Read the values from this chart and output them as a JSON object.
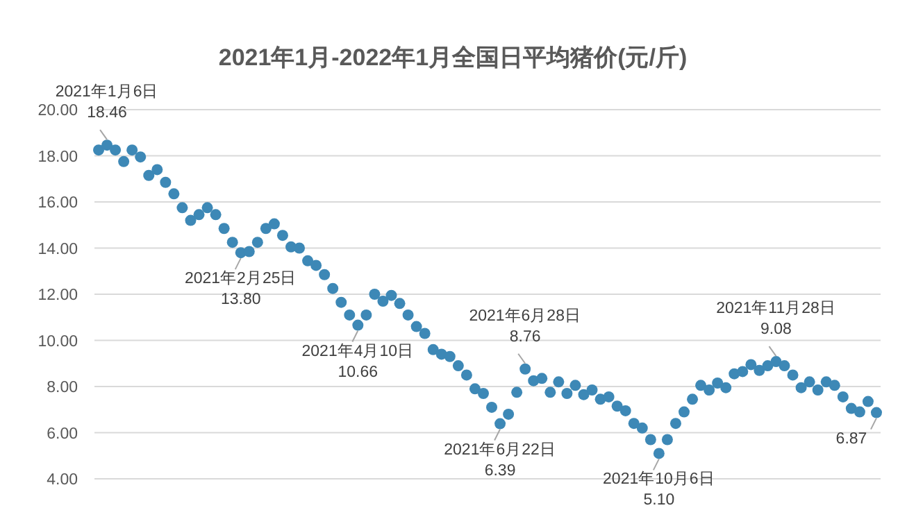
{
  "chart_data": {
    "type": "scatter",
    "title": "2021年1月-2022年1月全国日平均猪价(元/斤)",
    "categories": [
      null,
      null,
      null,
      null,
      null,
      null,
      null,
      null,
      null,
      null,
      null,
      null,
      null,
      null,
      null,
      null,
      null,
      null,
      null,
      null,
      null,
      null,
      null,
      null,
      null,
      null,
      null,
      null,
      null,
      null,
      null,
      null,
      null,
      null,
      null,
      null,
      null,
      null,
      null,
      null,
      null,
      null,
      null,
      null,
      null,
      null,
      null,
      null,
      null,
      null,
      null,
      null,
      null,
      null,
      null,
      null,
      null,
      null,
      null,
      null,
      null,
      null,
      null,
      null,
      null,
      null,
      null,
      null,
      null,
      null,
      null,
      null,
      null,
      null,
      null,
      null,
      null,
      null,
      null,
      null,
      null,
      null,
      null,
      null,
      null,
      null,
      null,
      null,
      null,
      null,
      null,
      null,
      null,
      null
    ],
    "series": [
      {
        "color": "#3d88b6",
        "values": [
          18.25,
          18.46,
          18.25,
          17.75,
          18.25,
          17.95,
          17.15,
          17.4,
          16.85,
          16.35,
          15.75,
          15.2,
          15.45,
          15.75,
          15.45,
          14.85,
          14.25,
          13.8,
          13.85,
          14.25,
          14.85,
          15.05,
          14.55,
          14.05,
          14.0,
          13.45,
          13.25,
          12.85,
          12.25,
          11.65,
          11.1,
          10.66,
          11.1,
          12.0,
          11.7,
          11.95,
          11.6,
          11.1,
          10.6,
          10.3,
          9.6,
          9.4,
          9.3,
          8.9,
          8.5,
          7.9,
          7.7,
          7.1,
          6.39,
          6.8,
          7.75,
          8.76,
          8.25,
          8.35,
          7.75,
          8.2,
          7.7,
          8.05,
          7.65,
          7.85,
          7.45,
          7.55,
          7.15,
          6.95,
          6.4,
          6.2,
          5.7,
          5.1,
          5.7,
          6.4,
          6.9,
          7.45,
          8.05,
          7.85,
          8.15,
          7.95,
          8.55,
          8.65,
          8.95,
          8.7,
          8.9,
          9.08,
          8.9,
          8.5,
          7.95,
          8.2,
          7.85,
          8.2,
          8.05,
          7.55,
          7.05,
          6.9,
          7.35,
          6.87
        ]
      }
    ],
    "marker": "circle",
    "grid": "y",
    "tick_labels": "y",
    "ylim": [
      4,
      20
    ],
    "yticks": [
      {
        "value": 4,
        "label": "4.00"
      },
      {
        "value": 6,
        "label": "6.00"
      },
      {
        "value": 8,
        "label": "8.00"
      },
      {
        "value": 10,
        "label": "10.00"
      },
      {
        "value": 12,
        "label": "12.00"
      },
      {
        "value": 14,
        "label": "14.00"
      },
      {
        "value": 16,
        "label": "16.00"
      },
      {
        "value": 18,
        "label": "18.00"
      },
      {
        "value": 20,
        "label": "20.00"
      }
    ],
    "annotations": [
      {
        "text": "2021年1月6日\n18.46",
        "y": 18.46
      },
      {
        "text": "2021年2月25日\n13.80",
        "y": 13.8
      },
      {
        "text": "2021年4月10日\n10.66",
        "y": 10.66
      },
      {
        "text": "2021年6月22日\n6.39",
        "y": 6.39
      },
      {
        "text": "2021年6月28日\n8.76",
        "y": 8.76
      },
      {
        "text": "2021年10月6日\n5.10",
        "y": 5.1
      },
      {
        "text": "2021年11月28日\n9.08",
        "y": 9.08
      },
      {
        "text": "6.87",
        "y": 6.87
      }
    ]
  }
}
